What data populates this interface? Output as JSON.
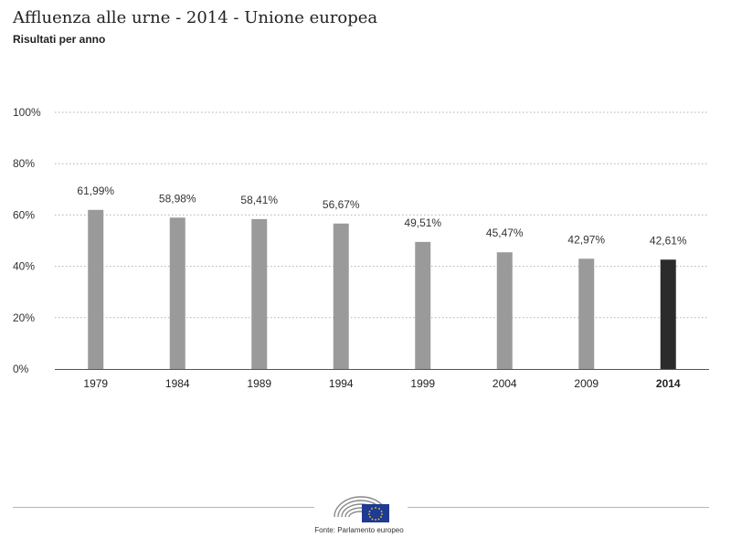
{
  "header": {
    "title": "Affluenza alle urne - 2014 - Unione europea",
    "subtitle": "Risultati per anno"
  },
  "chart_data": {
    "type": "bar",
    "categories": [
      "1979",
      "1984",
      "1989",
      "1994",
      "1999",
      "2004",
      "2009",
      "2014"
    ],
    "values": [
      61.99,
      58.98,
      58.41,
      56.67,
      49.51,
      45.47,
      42.97,
      42.61
    ],
    "value_labels": [
      "61,99%",
      "58,98%",
      "58,41%",
      "56,67%",
      "49,51%",
      "45,47%",
      "42,97%",
      "42,61%"
    ],
    "y_ticks": [
      0,
      20,
      40,
      60,
      80,
      100
    ],
    "y_tick_labels": [
      "0%",
      "20%",
      "40%",
      "60%",
      "80%",
      "100%"
    ],
    "ylim": [
      0,
      100
    ],
    "grid": true,
    "highlight_category": "2014",
    "colors": {
      "bar": "#9a9a9a",
      "highlight": "#2b2b2b",
      "grid": "#b0b0b0"
    }
  },
  "footer": {
    "logo": "european-parliament-logo",
    "source": "Fonte: Parlamento europeo"
  }
}
